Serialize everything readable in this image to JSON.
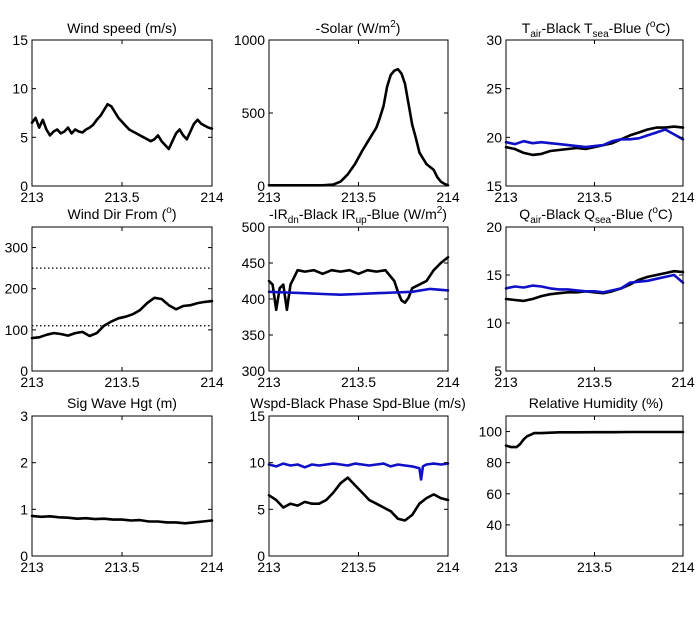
{
  "chart_data": [
    {
      "type": "line",
      "title": "Wind speed (m/s)",
      "xlim": [
        213,
        214
      ],
      "ylim": [
        0,
        15
      ],
      "xticks": [
        "213",
        "213.5",
        "214"
      ],
      "yticks": [
        "0",
        "5",
        "10",
        "15"
      ],
      "series": [
        {
          "color": "#000000",
          "x": [
            213.0,
            213.02,
            213.04,
            213.06,
            213.08,
            213.1,
            213.12,
            213.14,
            213.16,
            213.18,
            213.2,
            213.22,
            213.24,
            213.26,
            213.28,
            213.3,
            213.32,
            213.34,
            213.36,
            213.38,
            213.4,
            213.42,
            213.44,
            213.46,
            213.48,
            213.5,
            213.52,
            213.54,
            213.56,
            213.58,
            213.6,
            213.62,
            213.64,
            213.66,
            213.68,
            213.7,
            213.72,
            213.74,
            213.76,
            213.78,
            213.8,
            213.82,
            213.84,
            213.86,
            213.88,
            213.9,
            213.92,
            213.94,
            213.96,
            213.98,
            214.0
          ],
          "y": [
            6.5,
            7.0,
            6.0,
            6.8,
            5.8,
            5.2,
            5.6,
            5.8,
            5.4,
            5.6,
            6.0,
            5.4,
            5.8,
            5.6,
            5.5,
            5.8,
            6.0,
            6.3,
            6.8,
            7.2,
            7.8,
            8.4,
            8.2,
            7.6,
            7.0,
            6.6,
            6.2,
            5.8,
            5.6,
            5.4,
            5.2,
            5.0,
            4.8,
            4.6,
            4.8,
            5.2,
            4.6,
            4.2,
            3.8,
            4.6,
            5.4,
            5.8,
            5.2,
            4.8,
            5.6,
            6.4,
            6.8,
            6.4,
            6.2,
            6.0,
            5.9
          ]
        }
      ]
    },
    {
      "type": "line",
      "title": "-Solar (W/m2)",
      "xlim": [
        213,
        214
      ],
      "ylim": [
        0,
        1000
      ],
      "xticks": [
        "213",
        "213.5",
        "214"
      ],
      "yticks": [
        "0",
        "500",
        "1000"
      ],
      "series": [
        {
          "color": "#000000",
          "x": [
            213.0,
            213.1,
            213.2,
            213.3,
            213.36,
            213.4,
            213.44,
            213.48,
            213.52,
            213.54,
            213.56,
            213.58,
            213.6,
            213.62,
            213.64,
            213.66,
            213.68,
            213.7,
            213.72,
            213.74,
            213.76,
            213.78,
            213.8,
            213.82,
            213.84,
            213.86,
            213.88,
            213.9,
            213.92,
            213.94,
            213.96,
            213.98,
            214.0
          ],
          "y": [
            5,
            5,
            5,
            5,
            10,
            30,
            80,
            150,
            240,
            280,
            320,
            360,
            400,
            470,
            550,
            680,
            760,
            790,
            800,
            770,
            700,
            560,
            420,
            330,
            230,
            190,
            150,
            130,
            110,
            60,
            30,
            15,
            5
          ]
        }
      ]
    },
    {
      "type": "line",
      "title": "Tair-Black  Tsea-Blue (oC)",
      "xlim": [
        213,
        214
      ],
      "ylim": [
        15,
        30
      ],
      "xticks": [
        "213",
        "213.5",
        "214"
      ],
      "yticks": [
        "15",
        "20",
        "25",
        "30"
      ],
      "series": [
        {
          "color": "#000000",
          "x": [
            213.0,
            213.05,
            213.1,
            213.15,
            213.2,
            213.25,
            213.3,
            213.35,
            213.4,
            213.45,
            213.5,
            213.55,
            213.6,
            213.65,
            213.7,
            213.75,
            213.8,
            213.85,
            213.9,
            213.95,
            214.0
          ],
          "y": [
            19.0,
            18.8,
            18.4,
            18.2,
            18.3,
            18.6,
            18.7,
            18.8,
            18.9,
            18.8,
            19.0,
            19.2,
            19.4,
            19.8,
            20.2,
            20.5,
            20.8,
            21.0,
            21.0,
            21.1,
            21.0
          ]
        },
        {
          "color": "#1010c8",
          "x": [
            213.0,
            213.05,
            213.1,
            213.15,
            213.2,
            213.25,
            213.3,
            213.35,
            213.4,
            213.45,
            213.5,
            213.55,
            213.6,
            213.65,
            213.7,
            213.75,
            213.8,
            213.85,
            213.9,
            213.95,
            214.0
          ],
          "y": [
            19.5,
            19.3,
            19.6,
            19.4,
            19.5,
            19.4,
            19.3,
            19.2,
            19.1,
            19.0,
            19.1,
            19.2,
            19.6,
            19.8,
            19.8,
            19.9,
            20.2,
            20.5,
            20.8,
            20.3,
            19.8
          ]
        }
      ]
    },
    {
      "type": "line",
      "title": "Wind Dir From (o)",
      "xlim": [
        213,
        214
      ],
      "ylim": [
        0,
        350
      ],
      "xticks": [
        "213",
        "213.5",
        "214"
      ],
      "yticks": [
        "0",
        "100",
        "200",
        "300"
      ],
      "reference_lines": [
        250,
        110
      ],
      "series": [
        {
          "color": "#000000",
          "x": [
            213.0,
            213.04,
            213.08,
            213.12,
            213.16,
            213.2,
            213.24,
            213.28,
            213.32,
            213.36,
            213.4,
            213.44,
            213.48,
            213.52,
            213.56,
            213.6,
            213.64,
            213.68,
            213.72,
            213.76,
            213.8,
            213.84,
            213.88,
            213.92,
            213.96,
            214.0
          ],
          "y": [
            80,
            82,
            88,
            92,
            90,
            86,
            92,
            95,
            85,
            92,
            110,
            120,
            128,
            132,
            138,
            148,
            165,
            178,
            175,
            160,
            150,
            158,
            160,
            165,
            168,
            170
          ]
        }
      ]
    },
    {
      "type": "line",
      "title": "-IRdn-Black  IRup-Blue (W/m2)",
      "xlim": [
        213,
        214
      ],
      "ylim": [
        300,
        500
      ],
      "xticks": [
        "213",
        "213.5",
        "214"
      ],
      "yticks": [
        "300",
        "350",
        "400",
        "450",
        "500"
      ],
      "series": [
        {
          "color": "#000000",
          "x": [
            213.0,
            213.02,
            213.04,
            213.06,
            213.08,
            213.1,
            213.12,
            213.14,
            213.16,
            213.2,
            213.25,
            213.3,
            213.35,
            213.4,
            213.45,
            213.5,
            213.55,
            213.6,
            213.65,
            213.7,
            213.72,
            213.74,
            213.76,
            213.78,
            213.8,
            213.84,
            213.88,
            213.92,
            213.96,
            214.0
          ],
          "y": [
            425,
            420,
            385,
            415,
            420,
            385,
            420,
            430,
            440,
            438,
            440,
            435,
            440,
            438,
            440,
            435,
            440,
            438,
            440,
            425,
            410,
            398,
            395,
            402,
            415,
            420,
            425,
            440,
            450,
            458
          ]
        },
        {
          "color": "#1010c8",
          "x": [
            213.0,
            213.1,
            213.2,
            213.3,
            213.4,
            213.5,
            213.6,
            213.7,
            213.8,
            213.9,
            214.0
          ],
          "y": [
            410,
            409,
            408,
            407,
            406,
            407,
            408,
            409,
            410,
            414,
            412
          ]
        }
      ]
    },
    {
      "type": "line",
      "title": "Qair-Black  Qsea-Blue (oC)",
      "xlim": [
        213,
        214
      ],
      "ylim": [
        5,
        20
      ],
      "xticks": [
        "213",
        "213.5",
        "214"
      ],
      "yticks": [
        "5",
        "10",
        "15",
        "20"
      ],
      "series": [
        {
          "color": "#000000",
          "x": [
            213.0,
            213.05,
            213.1,
            213.15,
            213.2,
            213.25,
            213.3,
            213.35,
            213.4,
            213.45,
            213.5,
            213.55,
            213.6,
            213.65,
            213.7,
            213.75,
            213.8,
            213.85,
            213.9,
            213.95,
            214.0
          ],
          "y": [
            12.5,
            12.4,
            12.3,
            12.5,
            12.8,
            13.0,
            13.1,
            13.2,
            13.2,
            13.3,
            13.2,
            13.1,
            13.3,
            13.6,
            14.0,
            14.5,
            14.8,
            15.0,
            15.2,
            15.4,
            15.3
          ]
        },
        {
          "color": "#1010c8",
          "x": [
            213.0,
            213.05,
            213.1,
            213.15,
            213.2,
            213.25,
            213.3,
            213.35,
            213.4,
            213.45,
            213.5,
            213.55,
            213.6,
            213.65,
            213.7,
            213.75,
            213.8,
            213.85,
            213.9,
            213.95,
            214.0
          ],
          "y": [
            13.6,
            13.8,
            13.7,
            13.9,
            13.8,
            13.6,
            13.5,
            13.5,
            13.4,
            13.3,
            13.3,
            13.2,
            13.4,
            13.6,
            14.2,
            14.3,
            14.4,
            14.6,
            14.8,
            15.0,
            14.2
          ]
        }
      ]
    },
    {
      "type": "line",
      "title": "Sig Wave Hgt (m)",
      "xlim": [
        213,
        214
      ],
      "ylim": [
        0,
        3
      ],
      "xticks": [
        "213",
        "213.5",
        "214"
      ],
      "yticks": [
        "0",
        "1",
        "2",
        "3"
      ],
      "series": [
        {
          "color": "#000000",
          "x": [
            213.0,
            213.05,
            213.1,
            213.15,
            213.2,
            213.25,
            213.3,
            213.35,
            213.4,
            213.45,
            213.5,
            213.55,
            213.6,
            213.65,
            213.7,
            213.75,
            213.8,
            213.85,
            213.9,
            213.95,
            214.0
          ],
          "y": [
            0.86,
            0.84,
            0.85,
            0.83,
            0.82,
            0.8,
            0.81,
            0.79,
            0.8,
            0.78,
            0.78,
            0.76,
            0.77,
            0.74,
            0.74,
            0.72,
            0.72,
            0.7,
            0.72,
            0.74,
            0.76
          ]
        }
      ]
    },
    {
      "type": "line",
      "title": "Wspd-Black  Phase Spd-Blue (m/s)",
      "xlim": [
        213,
        214
      ],
      "ylim": [
        0,
        15
      ],
      "xticks": [
        "213",
        "213.5",
        "214"
      ],
      "yticks": [
        "0",
        "5",
        "10",
        "15"
      ],
      "series": [
        {
          "color": "#000000",
          "x": [
            213.0,
            213.04,
            213.08,
            213.12,
            213.16,
            213.2,
            213.24,
            213.28,
            213.32,
            213.36,
            213.4,
            213.44,
            213.48,
            213.52,
            213.56,
            213.6,
            213.64,
            213.68,
            213.72,
            213.76,
            213.8,
            213.84,
            213.88,
            213.92,
            213.96,
            214.0
          ],
          "y": [
            6.5,
            6.0,
            5.2,
            5.6,
            5.4,
            5.8,
            5.6,
            5.6,
            6.0,
            6.8,
            7.8,
            8.4,
            7.6,
            6.8,
            6.0,
            5.6,
            5.2,
            4.8,
            4.0,
            3.8,
            4.4,
            5.6,
            6.2,
            6.6,
            6.2,
            6.0
          ]
        },
        {
          "color": "#1010c8",
          "x": [
            213.0,
            213.04,
            213.08,
            213.12,
            213.16,
            213.2,
            213.24,
            213.28,
            213.32,
            213.36,
            213.4,
            213.44,
            213.48,
            213.52,
            213.56,
            213.6,
            213.64,
            213.68,
            213.72,
            213.76,
            213.8,
            213.84,
            213.85,
            213.86,
            213.88,
            213.92,
            213.96,
            214.0
          ],
          "y": [
            9.8,
            9.6,
            9.9,
            9.7,
            9.8,
            9.5,
            9.8,
            9.7,
            9.8,
            9.9,
            9.8,
            9.7,
            9.9,
            9.8,
            9.7,
            9.8,
            9.9,
            9.6,
            9.8,
            9.7,
            9.6,
            9.4,
            8.2,
            9.6,
            9.8,
            9.9,
            9.8,
            9.9
          ]
        }
      ]
    },
    {
      "type": "line",
      "title": "Relative Humidity (%)",
      "xlim": [
        213,
        214
      ],
      "ylim": [
        20,
        110
      ],
      "xticks": [
        "213",
        "213.5",
        "214"
      ],
      "yticks": [
        "40",
        "60",
        "80",
        "100"
      ],
      "series": [
        {
          "color": "#000000",
          "x": [
            213.0,
            213.03,
            213.06,
            213.08,
            213.1,
            213.12,
            213.14,
            213.16,
            213.2,
            213.3,
            213.4,
            213.5,
            213.6,
            213.7,
            213.8,
            213.9,
            214.0
          ],
          "y": [
            91,
            90,
            90,
            92,
            95,
            97,
            98,
            99,
            99,
            99.5,
            99.5,
            99.6,
            99.6,
            99.7,
            99.7,
            99.7,
            99.7
          ]
        }
      ]
    }
  ]
}
